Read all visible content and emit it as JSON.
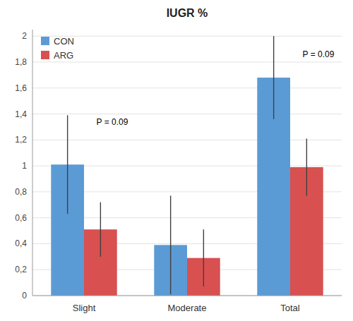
{
  "chart_data": {
    "type": "bar",
    "title": "IUGR %",
    "categories": [
      "Slight",
      "Moderate",
      "Total"
    ],
    "series": [
      {
        "name": "CON",
        "color": "#5B9BD5",
        "values": [
          1.01,
          0.39,
          1.68
        ],
        "errors": [
          0.38,
          0.38,
          0.32
        ]
      },
      {
        "name": "ARG",
        "color": "#D95050",
        "values": [
          0.51,
          0.29,
          0.99
        ],
        "errors": [
          0.21,
          0.22,
          0.22
        ]
      }
    ],
    "ylim": [
      0,
      2.05
    ],
    "yticks": [
      0,
      {
        "value": 0.2,
        "label": "0,2"
      },
      {
        "value": 0.4,
        "label": "0,4"
      },
      {
        "value": 0.6,
        "label": "0,6"
      },
      {
        "value": 0.8,
        "label": "0,8"
      },
      1,
      {
        "value": 1.2,
        "label": "1,2"
      },
      {
        "value": 1.4,
        "label": "1,4"
      },
      {
        "value": 1.6,
        "label": "1,6"
      },
      {
        "value": 1.8,
        "label": "1,8"
      },
      2
    ],
    "grid": true,
    "legend": "upper left",
    "annotations": [
      {
        "text": "P = 0.09",
        "category": "Slight",
        "y": 1.3
      },
      {
        "text": "P = 0.09",
        "category": "Total",
        "y": 1.82
      }
    ]
  }
}
